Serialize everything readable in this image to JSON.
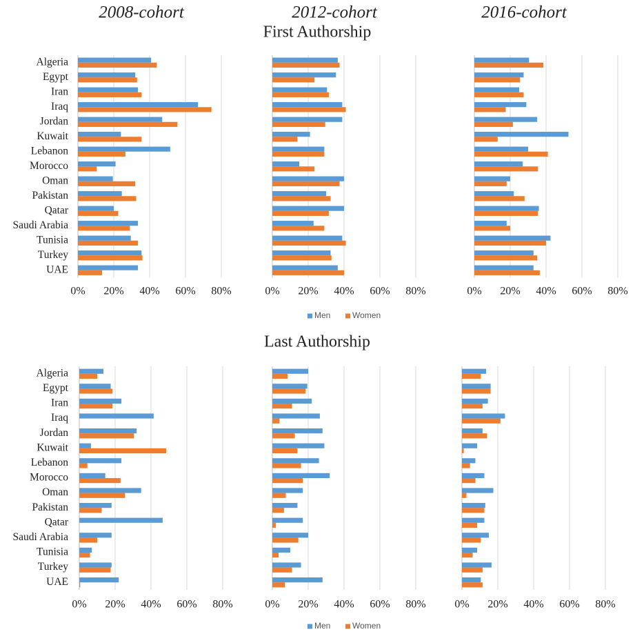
{
  "chart_data": [
    {
      "type": "bar",
      "orientation": "horizontal",
      "title": "First Authorship",
      "categories": [
        "Algeria",
        "Egypt",
        "Iran",
        "Iraq",
        "Jordan",
        "Kuwait",
        "Lebanon",
        "Morocco",
        "Oman",
        "Pakistan",
        "Qatar",
        "Saudi Arabia",
        "Tunisia",
        "Turkey",
        "UAE"
      ],
      "series": [
        {
          "name": "Men",
          "color": "#5b9bd5"
        },
        {
          "name": "Women",
          "color": "#ed7d31"
        }
      ],
      "xlim": [
        0,
        80
      ],
      "xticks": [
        {
          "value": 0,
          "label": "0%"
        },
        {
          "value": 20,
          "label": "20%"
        },
        {
          "value": 40,
          "label": "40%"
        },
        {
          "value": 60,
          "label": "60%"
        },
        {
          "value": 80,
          "label": "80%"
        }
      ],
      "grid": true,
      "legend": "bottom",
      "panels": [
        {
          "title": "2008-cohort",
          "series": [
            {
              "values": [
                40.8,
                32,
                33.5,
                67,
                47,
                24,
                51.5,
                21,
                19.5,
                24.5,
                20,
                33.5,
                29.5,
                35.5,
                33.5
              ]
            },
            {
              "values": [
                44,
                33,
                35.5,
                74.5,
                55.5,
                35.5,
                26.5,
                10.5,
                32,
                32.5,
                22.5,
                29,
                33.5,
                36,
                13.5
              ]
            }
          ]
        },
        {
          "title": "2012-cohort",
          "series": [
            {
              "values": [
                36.5,
                35.5,
                30.5,
                39,
                39,
                21,
                29,
                15,
                40,
                30,
                40,
                23,
                39,
                32.5,
                36.5
              ]
            },
            {
              "values": [
                37.5,
                23.5,
                31.5,
                41,
                29.5,
                14,
                29,
                23.5,
                37.5,
                32.5,
                31.5,
                29,
                41,
                33,
                40
              ]
            }
          ]
        },
        {
          "title": "2016-cohort",
          "series": [
            {
              "values": [
                30.5,
                27.5,
                25,
                29,
                35,
                52.5,
                30,
                27,
                20,
                22,
                36,
                18,
                42.5,
                33,
                33
              ]
            },
            {
              "values": [
                38.5,
                25.5,
                27.5,
                17.5,
                21.5,
                13,
                41,
                35.5,
                18,
                28,
                35.5,
                20,
                40,
                35,
                36.5
              ]
            }
          ]
        }
      ]
    },
    {
      "type": "bar",
      "orientation": "horizontal",
      "title": "Last Authorship",
      "categories": [
        "Algeria",
        "Egypt",
        "Iran",
        "Iraq",
        "Jordan",
        "Kuwait",
        "Lebanon",
        "Morocco",
        "Oman",
        "Pakistan",
        "Qatar",
        "Saudi Arabia",
        "Tunisia",
        "Turkey",
        "UAE"
      ],
      "series": [
        {
          "name": "Men",
          "color": "#5b9bd5"
        },
        {
          "name": "Women",
          "color": "#ed7d31"
        }
      ],
      "xlim": [
        0,
        80
      ],
      "xticks": [
        {
          "value": 0,
          "label": "0%"
        },
        {
          "value": 20,
          "label": "20%"
        },
        {
          "value": 40,
          "label": "40%"
        },
        {
          "value": 60,
          "label": "60%"
        },
        {
          "value": 80,
          "label": "80%"
        }
      ],
      "grid": true,
      "legend": "bottom",
      "panels": [
        {
          "series": [
            {
              "values": [
                13.5,
                17.5,
                23.5,
                41.5,
                32,
                6.5,
                23.5,
                14.5,
                34.5,
                18,
                46.5,
                18,
                7,
                18,
                22
              ]
            },
            {
              "values": [
                10,
                18.5,
                18.5,
                0,
                30.5,
                48.5,
                4.5,
                23,
                25.5,
                12.5,
                0,
                10,
                6,
                17.5,
                0.5
              ]
            }
          ]
        },
        {
          "series": [
            {
              "values": [
                20,
                19.5,
                22,
                26.5,
                28,
                29,
                26,
                32,
                17,
                14,
                17,
                20,
                10,
                16,
                28
              ]
            },
            {
              "values": [
                8.5,
                18.5,
                11,
                4,
                12.5,
                14,
                16,
                17,
                7.5,
                6.5,
                2,
                14.5,
                3.5,
                11,
                7
              ]
            }
          ]
        },
        {
          "series": [
            {
              "values": [
                13.5,
                16,
                14.5,
                24,
                11.5,
                8.5,
                7.5,
                12.5,
                17.5,
                13,
                12.5,
                15,
                8.5,
                16.5,
                10.5
              ]
            },
            {
              "values": [
                10.5,
                16,
                11.5,
                21.5,
                14,
                1,
                4.5,
                7.5,
                2.5,
                12.5,
                8.5,
                10.5,
                6,
                11.5,
                11.5
              ]
            }
          ]
        }
      ]
    }
  ]
}
